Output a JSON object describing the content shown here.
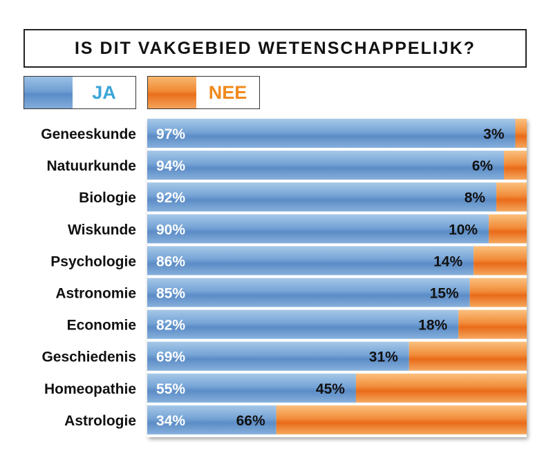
{
  "chart_data": {
    "type": "bar",
    "orientation": "horizontal",
    "stacked": true,
    "percent_stacked": true,
    "title": "IS DIT VAKGEBIED WETENSCHAPPELIJK?",
    "categories": [
      "Geneeskunde",
      "Natuurkunde",
      "Biologie",
      "Wiskunde",
      "Psychologie",
      "Astronomie",
      "Economie",
      "Geschiedenis",
      "Homeopathie",
      "Astrologie"
    ],
    "series": [
      {
        "name": "JA",
        "values": [
          97,
          94,
          92,
          90,
          86,
          85,
          82,
          69,
          55,
          34
        ],
        "labels": [
          "97%",
          "94%",
          "92%",
          "90%",
          "86%",
          "85%",
          "82%",
          "69%",
          "55%",
          "34%"
        ]
      },
      {
        "name": "NEE",
        "values": [
          3,
          6,
          8,
          10,
          14,
          15,
          18,
          31,
          45,
          66
        ],
        "labels": [
          "3%",
          "6%",
          "8%",
          "10%",
          "14%",
          "15%",
          "18%",
          "31%",
          "45%",
          "66%"
        ]
      }
    ],
    "xlim": [
      0,
      100
    ],
    "legend_position": "top-left",
    "grid": false
  },
  "colors": {
    "ja": "#6b9bd2",
    "nee": "#f08a35",
    "ja_legend_text": "#3aa6d8",
    "nee_legend_text": "#f08a1c"
  }
}
